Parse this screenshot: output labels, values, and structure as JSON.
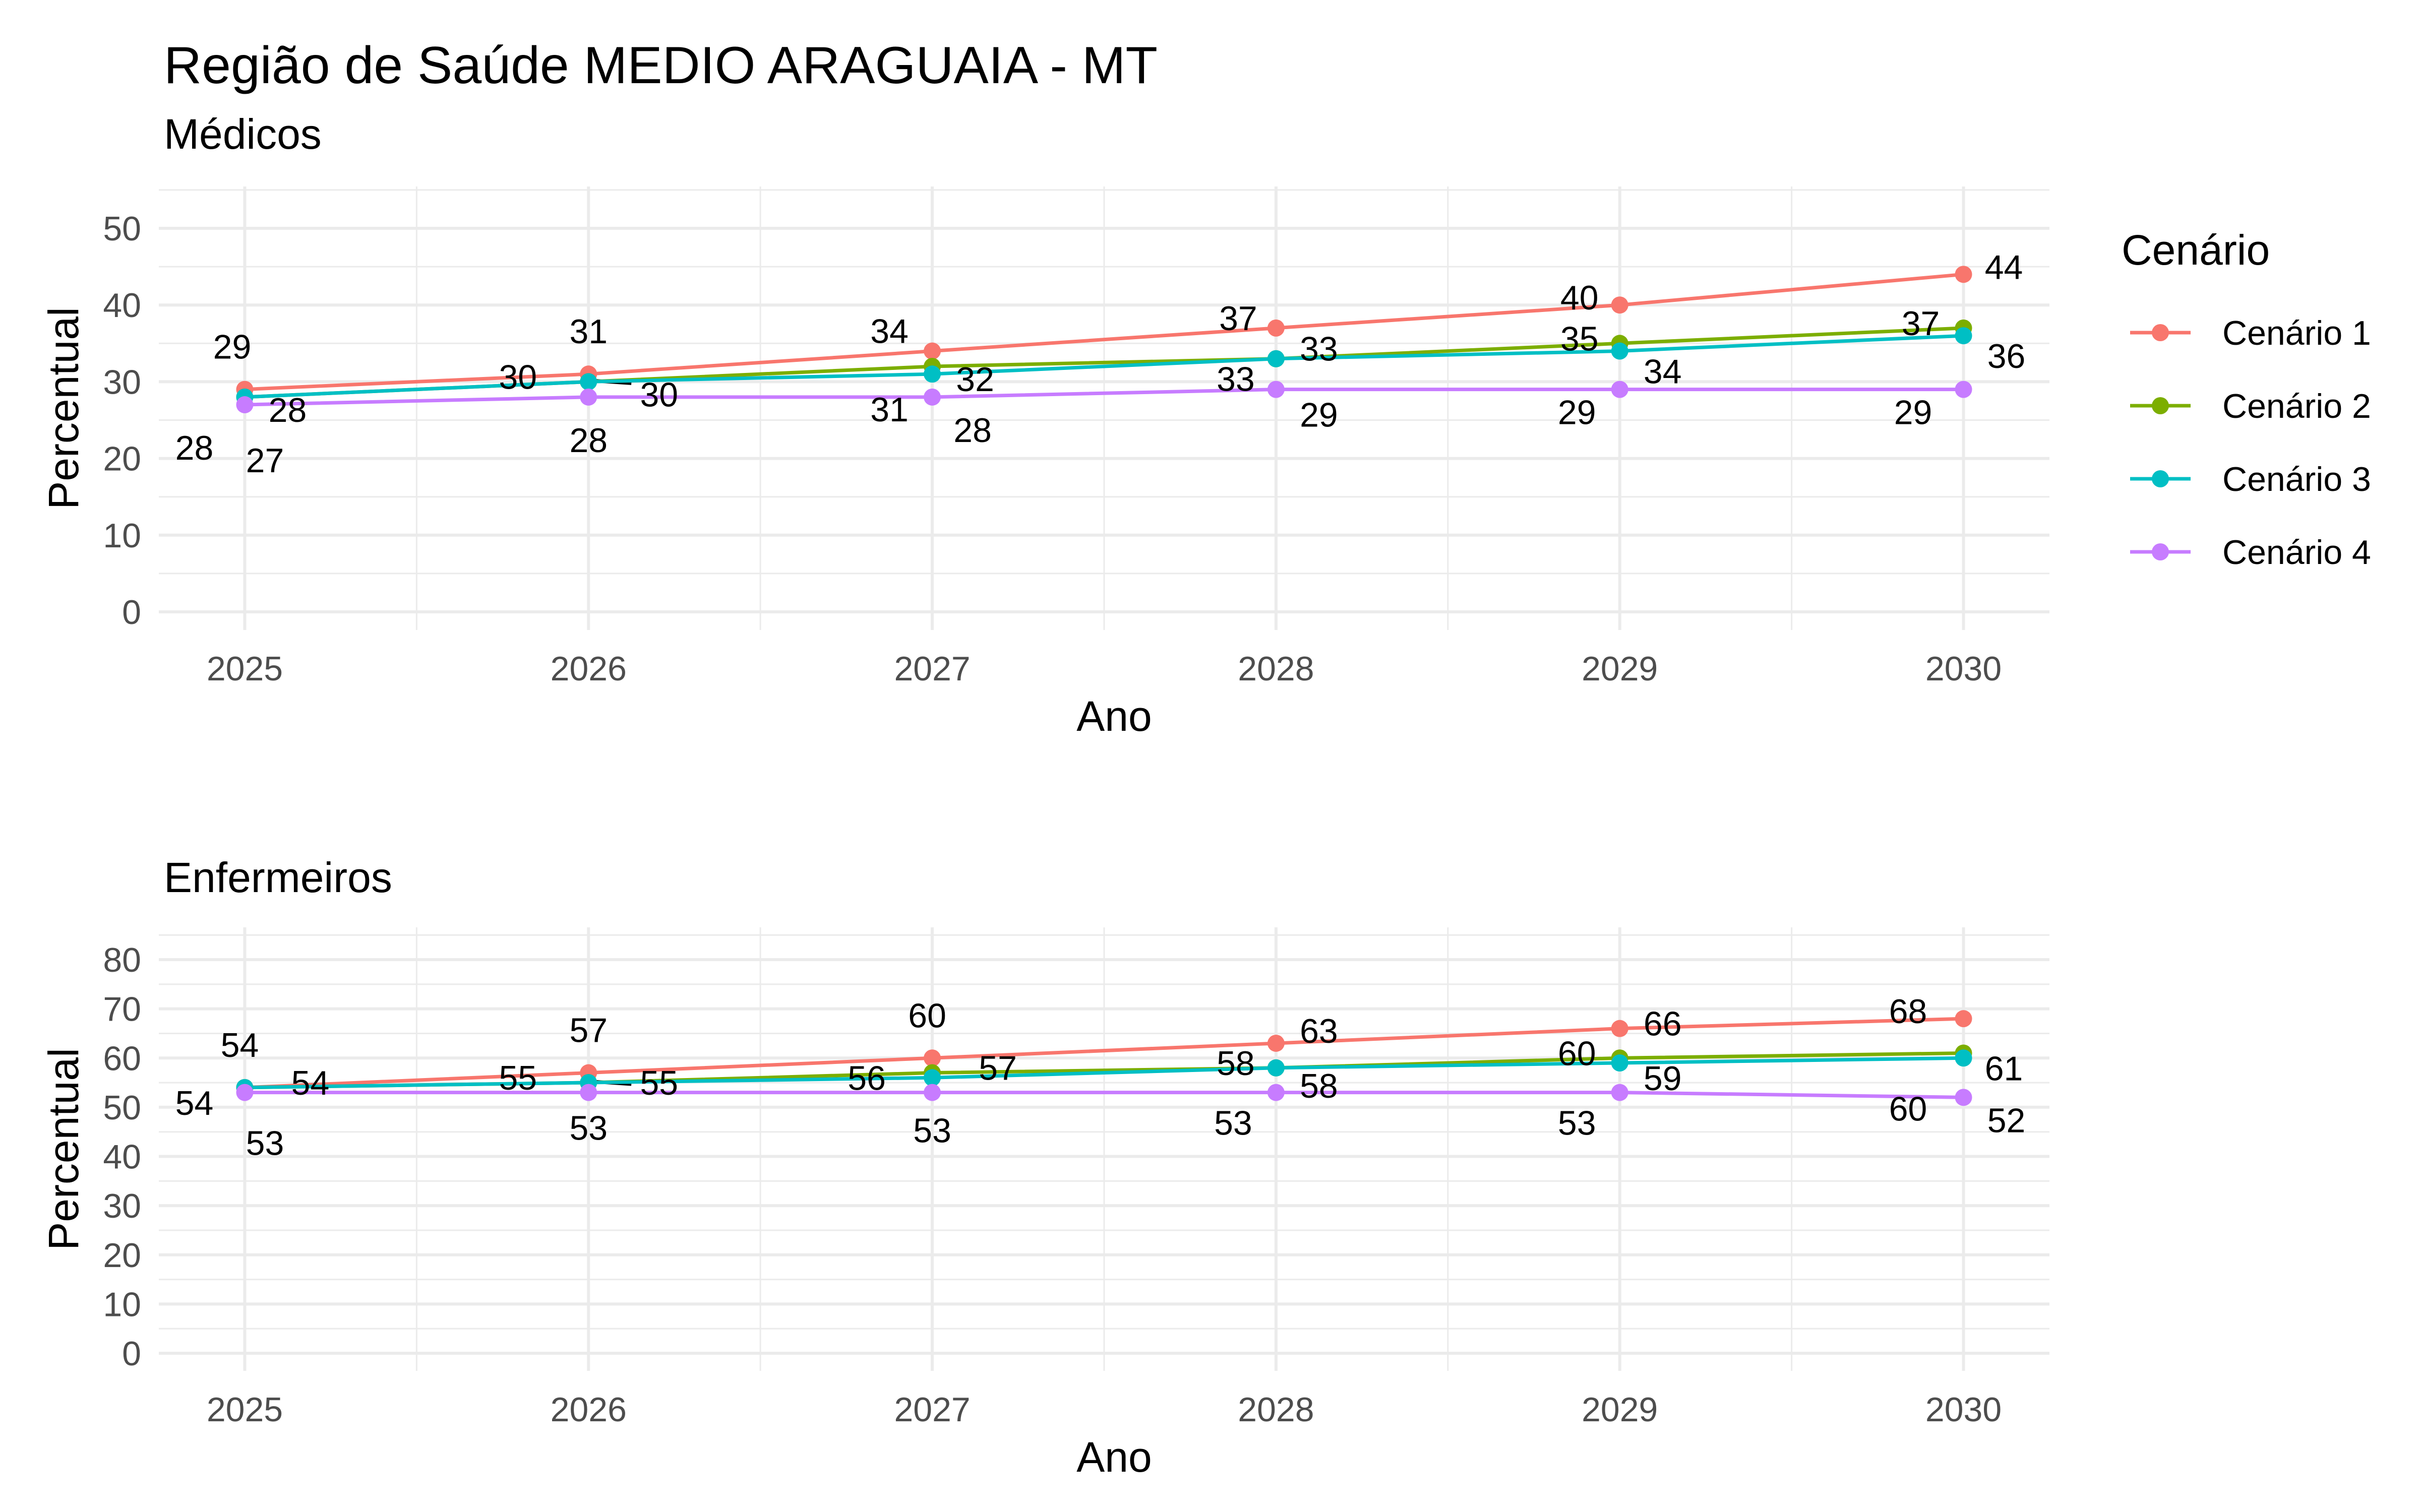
{
  "title": "Região de Saúde MEDIO ARAGUAIA - MT",
  "legend": {
    "title": "Cenário",
    "items": [
      "Cenário 1",
      "Cenário 2",
      "Cenário 3",
      "Cenário 4"
    ]
  },
  "colors": {
    "Cenário 1": "#F8766D",
    "Cenário 2": "#7CAE00",
    "Cenário 3": "#00BFC4",
    "Cenário 4": "#C77CFF",
    "connector": "#000000"
  },
  "chart_data": [
    {
      "type": "line",
      "title": "Médicos",
      "xlabel": "Ano",
      "ylabel": "Percentual",
      "x": [
        2025,
        2026,
        2027,
        2028,
        2029,
        2030
      ],
      "ylim": [
        0,
        50
      ],
      "yticks": [
        0,
        10,
        20,
        30,
        40,
        50
      ],
      "grid": true,
      "legend_position": "right",
      "series": [
        {
          "name": "Cenário 1",
          "values": [
            29,
            31,
            34,
            37,
            40,
            44
          ]
        },
        {
          "name": "Cenário 2",
          "values": [
            28,
            30,
            32,
            33,
            35,
            37
          ]
        },
        {
          "name": "Cenário 3",
          "values": [
            28,
            30,
            31,
            33,
            34,
            36
          ]
        },
        {
          "name": "Cenário 4",
          "values": [
            27,
            28,
            28,
            29,
            29,
            29
          ]
        }
      ]
    },
    {
      "type": "line",
      "title": "Enfermeiros",
      "xlabel": "Ano",
      "ylabel": "Percentual",
      "x": [
        2025,
        2026,
        2027,
        2028,
        2029,
        2030
      ],
      "ylim": [
        0,
        80
      ],
      "yticks": [
        0,
        10,
        20,
        30,
        40,
        50,
        60,
        70,
        80
      ],
      "grid": true,
      "legend_position": "right",
      "series": [
        {
          "name": "Cenário 1",
          "values": [
            54,
            57,
            60,
            63,
            66,
            68
          ]
        },
        {
          "name": "Cenário 2",
          "values": [
            54,
            55,
            57,
            58,
            60,
            61
          ]
        },
        {
          "name": "Cenário 3",
          "values": [
            54,
            55,
            56,
            58,
            59,
            60
          ]
        },
        {
          "name": "Cenário 4",
          "values": [
            53,
            53,
            53,
            53,
            53,
            52
          ]
        }
      ]
    }
  ]
}
